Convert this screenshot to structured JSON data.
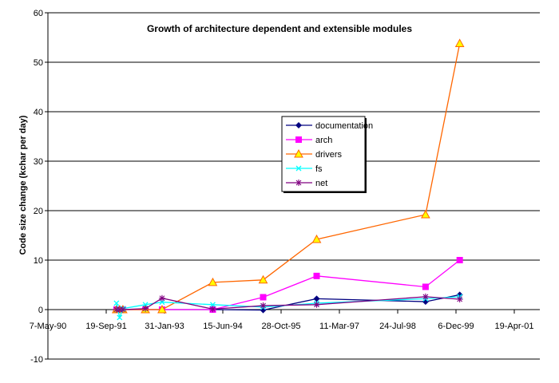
{
  "chart_data": {
    "type": "line",
    "title": "Growth of architecture dependent and extensible modules",
    "xlabel": "",
    "ylabel": "Code size change (kchar per day)",
    "ylim": [
      -10,
      60
    ],
    "yticks": [
      -10,
      0,
      10,
      20,
      30,
      40,
      50,
      60
    ],
    "xlim": [
      "1990-05-07",
      "2001-04-19"
    ],
    "xtick_labels": [
      "7-May-90",
      "19-Sep-91",
      "31-Jan-93",
      "15-Jun-94",
      "28-Oct-95",
      "11-Mar-97",
      "24-Jul-98",
      "6-Dec-99",
      "19-Apr-01"
    ],
    "grid": "horizontal",
    "legend_position": "center-right",
    "x": [
      "1991-12-16",
      "1992-01-12",
      "1992-02-09",
      "1992-08-20",
      "1993-01-10",
      "1994-03-21",
      "1995-05-27",
      "1996-08-28",
      "1999-03-20",
      "2000-01-07"
    ],
    "series": [
      {
        "name": "documentation",
        "color": "#000080",
        "marker": "diamond",
        "values": [
          0,
          0,
          0,
          0,
          0,
          0,
          -0.1,
          2.2,
          1.6,
          3.0
        ]
      },
      {
        "name": "arch",
        "color": "#ff00ff",
        "marker": "square",
        "values": [
          0,
          0,
          0,
          0,
          0,
          0,
          2.5,
          6.8,
          4.6,
          10.0
        ]
      },
      {
        "name": "drivers",
        "color": "#ff6600",
        "marker": "triangle",
        "values": [
          0,
          0,
          0,
          0,
          0,
          5.5,
          6.0,
          14.2,
          19.2,
          53.8
        ]
      },
      {
        "name": "fs",
        "color": "#00ffff",
        "marker": "x",
        "values": [
          1.3,
          -1.6,
          0.2,
          1.0,
          1.5,
          1.0,
          0.5,
          1.3,
          2.2,
          2.6
        ]
      },
      {
        "name": "net",
        "color": "#800080",
        "marker": "star",
        "values": [
          0,
          0,
          0,
          0.2,
          2.3,
          0.1,
          0.8,
          1.0,
          2.6,
          2.1
        ]
      }
    ]
  }
}
